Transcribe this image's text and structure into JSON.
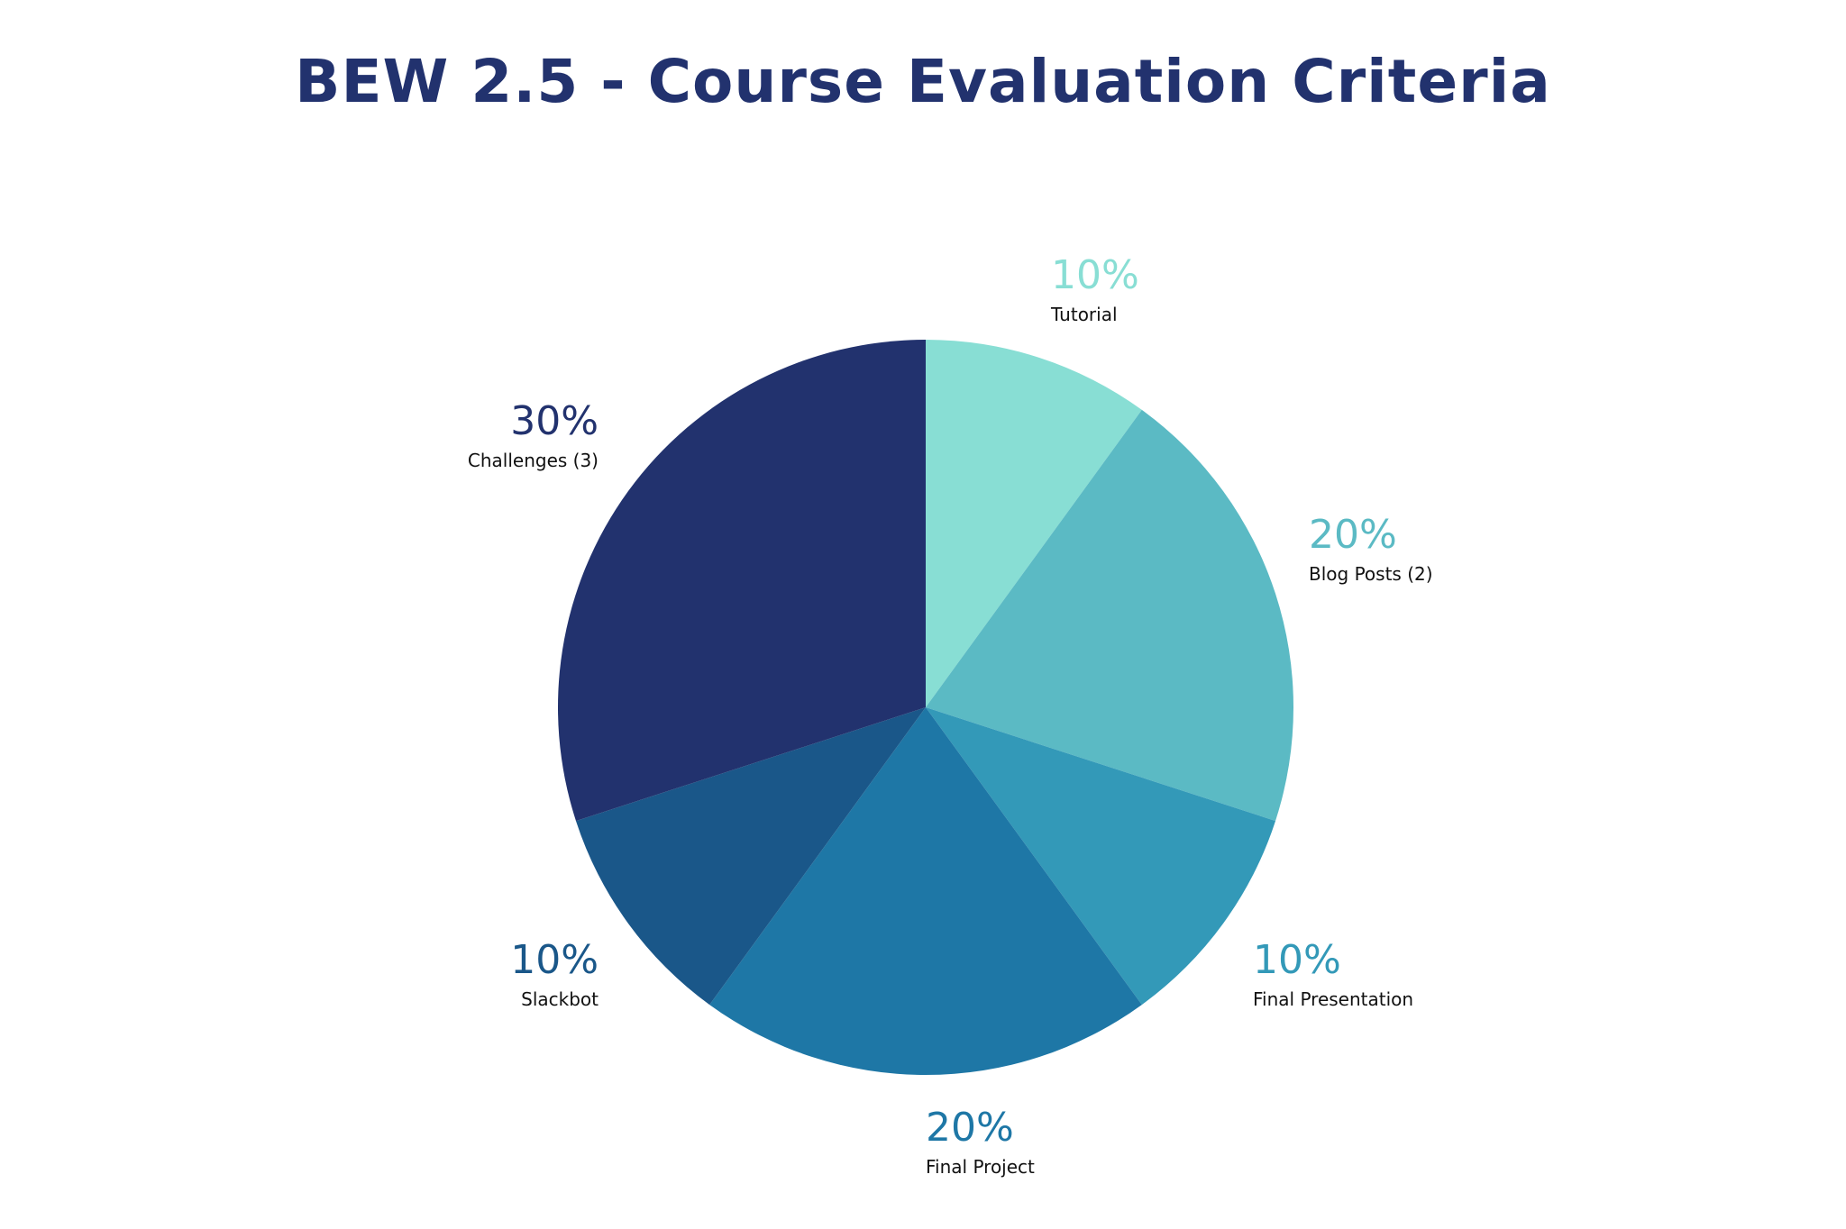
{
  "chart_data": {
    "type": "pie",
    "title": "BEW 2.5 - Course Evaluation Criteria",
    "title_color": "#22326e",
    "slices": [
      {
        "label": "Tutorial",
        "value": 10,
        "value_label": "10%",
        "color": "#88ded4"
      },
      {
        "label": "Blog Posts (2)",
        "value": 20,
        "value_label": "20%",
        "color": "#5bbac4"
      },
      {
        "label": "Final Presentation",
        "value": 10,
        "value_label": "10%",
        "color": "#3399b8"
      },
      {
        "label": "Final Project",
        "value": 20,
        "value_label": "20%",
        "color": "#1e77a6"
      },
      {
        "label": "Slackbot",
        "value": 10,
        "value_label": "10%",
        "color": "#1a5789"
      },
      {
        "label": "Challenges (3)",
        "value": 30,
        "value_label": "30%",
        "color": "#22326e"
      }
    ],
    "start_angle": "top",
    "direction": "clockwise",
    "legend": "none"
  }
}
